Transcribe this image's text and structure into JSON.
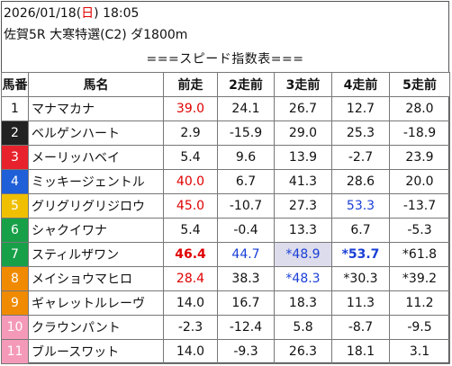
{
  "header": {
    "date": "2026/01/18",
    "weekday_open": "(",
    "weekday": "日",
    "weekday_close": ")",
    "time": "18:05",
    "race": "佐賀5R 大寒特選(C2) ダ1800m"
  },
  "table_title": "===スピード指数表===",
  "columns": [
    "馬番",
    "馬名",
    "前走",
    "2走前",
    "3走前",
    "4走前",
    "5走前"
  ],
  "colors": {
    "frame1": "#ffffff",
    "frame2": "#222222",
    "frame3": "#e8222c",
    "frame4": "#1f5fd8",
    "frame5": "#f0c000",
    "frame6": "#18a048",
    "frame7": "#f08a00",
    "frame8": "#f49ab8",
    "accent_red": "#e00000",
    "accent_blue": "#1a3fd6",
    "highlight_bg": "#dcdcec"
  },
  "rows": [
    {
      "no": "1",
      "frame": "#ffffff",
      "no_color": "#111111",
      "name": "マナマカナ",
      "vals": [
        {
          "t": "39.0",
          "c": "red"
        },
        {
          "t": "24.1"
        },
        {
          "t": "26.7"
        },
        {
          "t": "12.7"
        },
        {
          "t": "28.0"
        }
      ]
    },
    {
      "no": "2",
      "frame": "#222222",
      "no_color": "#ffffff",
      "name": "ベルゲンハート",
      "vals": [
        {
          "t": "2.9"
        },
        {
          "t": "-15.9"
        },
        {
          "t": "29.0"
        },
        {
          "t": "25.3"
        },
        {
          "t": "-18.9"
        }
      ]
    },
    {
      "no": "3",
      "frame": "#e8222c",
      "no_color": "#ffffff",
      "name": "メーリッハベイ",
      "vals": [
        {
          "t": "5.4"
        },
        {
          "t": "9.6"
        },
        {
          "t": "13.9"
        },
        {
          "t": "-2.7"
        },
        {
          "t": "23.9"
        }
      ]
    },
    {
      "no": "4",
      "frame": "#1f5fd8",
      "no_color": "#ffffff",
      "name": "ミッキージェントル",
      "vals": [
        {
          "t": "40.0",
          "c": "red"
        },
        {
          "t": "6.7"
        },
        {
          "t": "41.3"
        },
        {
          "t": "28.6"
        },
        {
          "t": "20.0"
        }
      ]
    },
    {
      "no": "5",
      "frame": "#f0c000",
      "no_color": "#ffffff",
      "name": "グリグリグリジロウ",
      "vals": [
        {
          "t": "45.0",
          "c": "red"
        },
        {
          "t": "-10.7"
        },
        {
          "t": "27.3"
        },
        {
          "t": "53.3",
          "c": "blue"
        },
        {
          "t": "-13.7"
        }
      ]
    },
    {
      "no": "6",
      "frame": "#18a048",
      "no_color": "#ffffff",
      "name": "シャクイワナ",
      "vals": [
        {
          "t": "5.4"
        },
        {
          "t": "-0.4"
        },
        {
          "t": "13.3"
        },
        {
          "t": "6.7"
        },
        {
          "t": "-5.3"
        }
      ]
    },
    {
      "no": "7",
      "frame": "#18a048",
      "no_color": "#ffffff",
      "name": "スティルザワン",
      "vals": [
        {
          "t": "46.4",
          "c": "red",
          "b": true
        },
        {
          "t": "44.7",
          "c": "blue"
        },
        {
          "t": "*48.9",
          "c": "blue",
          "hl": true
        },
        {
          "t": "*53.7",
          "c": "blue",
          "b": true
        },
        {
          "t": "*61.8"
        }
      ]
    },
    {
      "no": "8",
      "frame": "#f08a00",
      "no_color": "#ffffff",
      "name": "メイショウマヒロ",
      "vals": [
        {
          "t": "28.4",
          "c": "red"
        },
        {
          "t": "38.3"
        },
        {
          "t": "*48.3",
          "c": "blue"
        },
        {
          "t": "*30.3"
        },
        {
          "t": "*39.2"
        }
      ]
    },
    {
      "no": "9",
      "frame": "#f08a00",
      "no_color": "#ffffff",
      "name": "ギャレットルレーヴ",
      "vals": [
        {
          "t": "14.0"
        },
        {
          "t": "16.7"
        },
        {
          "t": "18.3"
        },
        {
          "t": "11.3"
        },
        {
          "t": "11.2"
        }
      ]
    },
    {
      "no": "10",
      "frame": "#f49ab8",
      "no_color": "#ffffff",
      "name": "クラウンパント",
      "vals": [
        {
          "t": "-2.3"
        },
        {
          "t": "-12.4"
        },
        {
          "t": "5.8"
        },
        {
          "t": "-8.7"
        },
        {
          "t": "-9.5"
        }
      ]
    },
    {
      "no": "11",
      "frame": "#f49ab8",
      "no_color": "#ffffff",
      "name": "ブルースワット",
      "vals": [
        {
          "t": "14.0"
        },
        {
          "t": "-9.3"
        },
        {
          "t": "26.3"
        },
        {
          "t": "18.1"
        },
        {
          "t": "3.1"
        }
      ]
    }
  ]
}
